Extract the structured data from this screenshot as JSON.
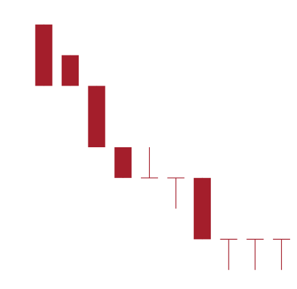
{
  "chart_data": {
    "type": "candlestick",
    "title": "",
    "xlabel": "",
    "ylabel": "",
    "grid": false,
    "legend": "none",
    "colors": {
      "down": "#A41E2B"
    },
    "ylim": [
      0,
      10
    ],
    "candles": [
      {
        "open": 9.0,
        "high": 9.0,
        "low": 7.0,
        "close": 7.0
      },
      {
        "open": 8.0,
        "high": 8.0,
        "low": 7.0,
        "close": 7.0
      },
      {
        "open": 7.0,
        "high": 7.0,
        "low": 5.0,
        "close": 5.0
      },
      {
        "open": 5.0,
        "high": 5.0,
        "low": 4.0,
        "close": 4.0
      },
      {
        "open": 4.0,
        "high": 5.0,
        "low": 4.0,
        "close": 4.0
      },
      {
        "open": 4.0,
        "high": 4.0,
        "low": 3.0,
        "close": 4.0
      },
      {
        "open": 4.0,
        "high": 4.0,
        "low": 2.0,
        "close": 2.0
      },
      {
        "open": 2.0,
        "high": 2.0,
        "low": 1.0,
        "close": 2.0
      },
      {
        "open": 2.0,
        "high": 2.0,
        "low": 1.0,
        "close": 2.0
      },
      {
        "open": 2.0,
        "high": 2.0,
        "low": 1.0,
        "close": 2.0
      }
    ]
  }
}
